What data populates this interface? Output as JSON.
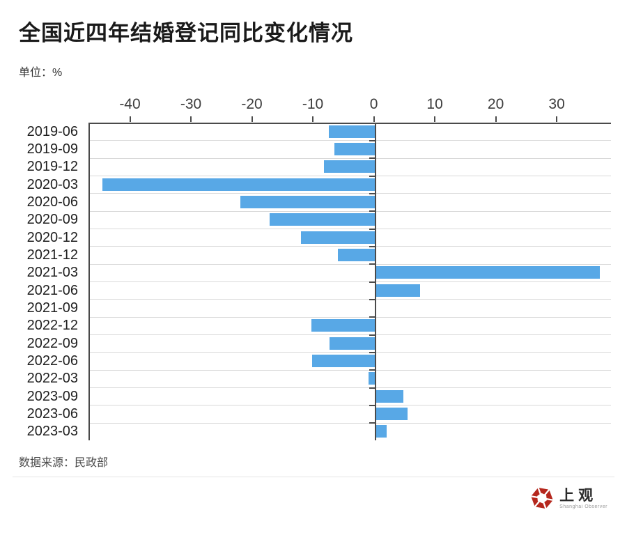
{
  "header": {
    "title": "全国近四年结婚登记同比变化情况",
    "unit": "单位：%"
  },
  "footer": {
    "source": "数据来源：民政部",
    "logo_name": "上观",
    "logo_subtitle": "Shanghai Observer"
  },
  "colors": {
    "bar": "#58a8e6",
    "axis": "#4a4a4a",
    "grid": "#d9d9d9",
    "title_text": "#1a1a1a",
    "logo_red": "#b5271d"
  },
  "chart_data": {
    "type": "bar",
    "orientation": "horizontal",
    "title": "全国近四年结婚登记同比变化情况",
    "unit": "%",
    "categories": [
      "2019-06",
      "2019-09",
      "2019-12",
      "2020-03",
      "2020-06",
      "2020-09",
      "2020-12",
      "2021-12",
      "2021-03",
      "2021-06",
      "2021-09",
      "2022-12",
      "2022-09",
      "2022-06",
      "2022-03",
      "2023-09",
      "2023-06",
      "2023-03"
    ],
    "values": [
      -7.6,
      -6.7,
      -8.4,
      -44.7,
      -22.1,
      -17.3,
      -12.2,
      -6.1,
      36.9,
      7.4,
      -0.1,
      -10.5,
      -7.5,
      -10.4,
      -1.1,
      4.6,
      5.3,
      1.9
    ],
    "x_ticks": [
      -40,
      -30,
      -20,
      -10,
      0,
      10,
      20,
      30
    ],
    "xlim": [
      -46.8,
      38.9
    ],
    "grid": true,
    "legend": false
  }
}
